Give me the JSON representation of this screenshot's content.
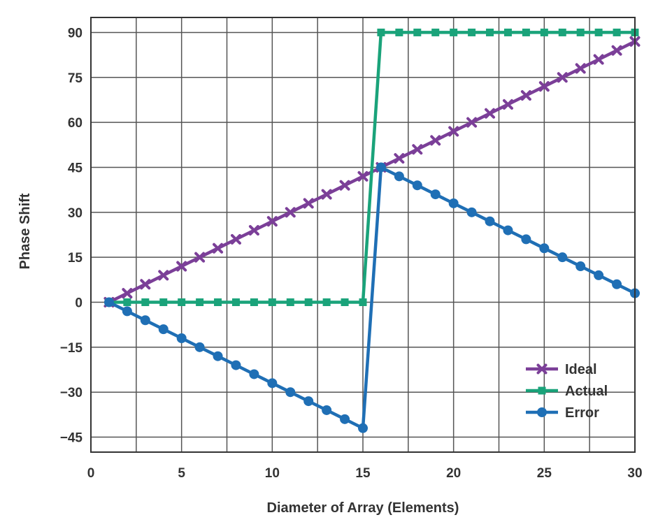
{
  "chart_data": {
    "type": "line",
    "xlabel": "Diameter of Array (Elements)",
    "ylabel": "Phase Shift",
    "xlim": [
      0,
      30
    ],
    "ylim": [
      -50,
      95
    ],
    "xticks": [
      0,
      5,
      10,
      15,
      20,
      25,
      30
    ],
    "yticks": [
      90,
      75,
      60,
      45,
      30,
      15,
      0,
      -15,
      -30,
      -45
    ],
    "ytick_labels": [
      "90",
      "75",
      "60",
      "45",
      "30",
      "15",
      "0",
      "−15",
      "−30",
      "−45"
    ],
    "grid": true,
    "legend_position": "bottom-right",
    "series": [
      {
        "name": "Ideal",
        "color": "#7b3f98",
        "marker": "x",
        "x": [
          1,
          2,
          3,
          4,
          5,
          6,
          7,
          8,
          9,
          10,
          11,
          12,
          13,
          14,
          15,
          16,
          17,
          18,
          19,
          20,
          21,
          22,
          23,
          24,
          25,
          26,
          27,
          28,
          29,
          30
        ],
        "values": [
          0,
          3,
          6,
          9,
          12,
          15,
          18,
          21,
          24,
          27,
          30,
          33,
          36,
          39,
          42,
          45,
          48,
          51,
          54,
          57,
          60,
          63,
          66,
          69,
          72,
          75,
          78,
          81,
          84,
          87
        ]
      },
      {
        "name": "Actual",
        "color": "#1aa37a",
        "marker": "square",
        "x": [
          1,
          2,
          3,
          4,
          5,
          6,
          7,
          8,
          9,
          10,
          11,
          12,
          13,
          14,
          15,
          16,
          17,
          18,
          19,
          20,
          21,
          22,
          23,
          24,
          25,
          26,
          27,
          28,
          29,
          30
        ],
        "values": [
          0,
          0,
          0,
          0,
          0,
          0,
          0,
          0,
          0,
          0,
          0,
          0,
          0,
          0,
          0,
          90,
          90,
          90,
          90,
          90,
          90,
          90,
          90,
          90,
          90,
          90,
          90,
          90,
          90,
          90
        ]
      },
      {
        "name": "Error",
        "color": "#1f6fb5",
        "marker": "circle",
        "x": [
          1,
          2,
          3,
          4,
          5,
          6,
          7,
          8,
          9,
          10,
          11,
          12,
          13,
          14,
          15,
          16,
          17,
          18,
          19,
          20,
          21,
          22,
          23,
          24,
          25,
          26,
          27,
          28,
          29,
          30
        ],
        "values": [
          0,
          -3,
          -6,
          -9,
          -12,
          -15,
          -18,
          -21,
          -24,
          -27,
          -30,
          -33,
          -36,
          -39,
          -42,
          45,
          42,
          39,
          36,
          33,
          30,
          27,
          24,
          21,
          18,
          15,
          12,
          9,
          6,
          3
        ]
      }
    ]
  }
}
